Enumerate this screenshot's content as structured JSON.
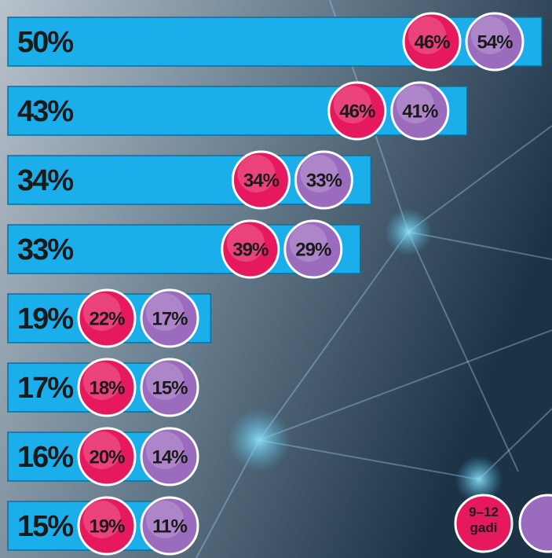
{
  "chart_data": {
    "type": "bar",
    "values": [
      50,
      43,
      34,
      33,
      19,
      17,
      16,
      15
    ],
    "value_labels": [
      "50%",
      "43%",
      "34%",
      "33%",
      "19%",
      "17%",
      "16%",
      "15%"
    ],
    "color": "#1aaeea",
    "series": [
      {
        "name": "9–12 gadi",
        "color": "#e6195f",
        "values": [
          46,
          46,
          34,
          39,
          22,
          18,
          20,
          19
        ],
        "value_labels": [
          "46%",
          "46%",
          "34%",
          "39%",
          "22%",
          "18%",
          "20%",
          "19%"
        ]
      },
      {
        "color": "#9b6bbd",
        "values": [
          54,
          41,
          33,
          29,
          17,
          15,
          14,
          11
        ],
        "value_labels": [
          "54%",
          "41%",
          "33%",
          "29%",
          "17%",
          "15%",
          "14%",
          "11%"
        ]
      }
    ]
  }
}
